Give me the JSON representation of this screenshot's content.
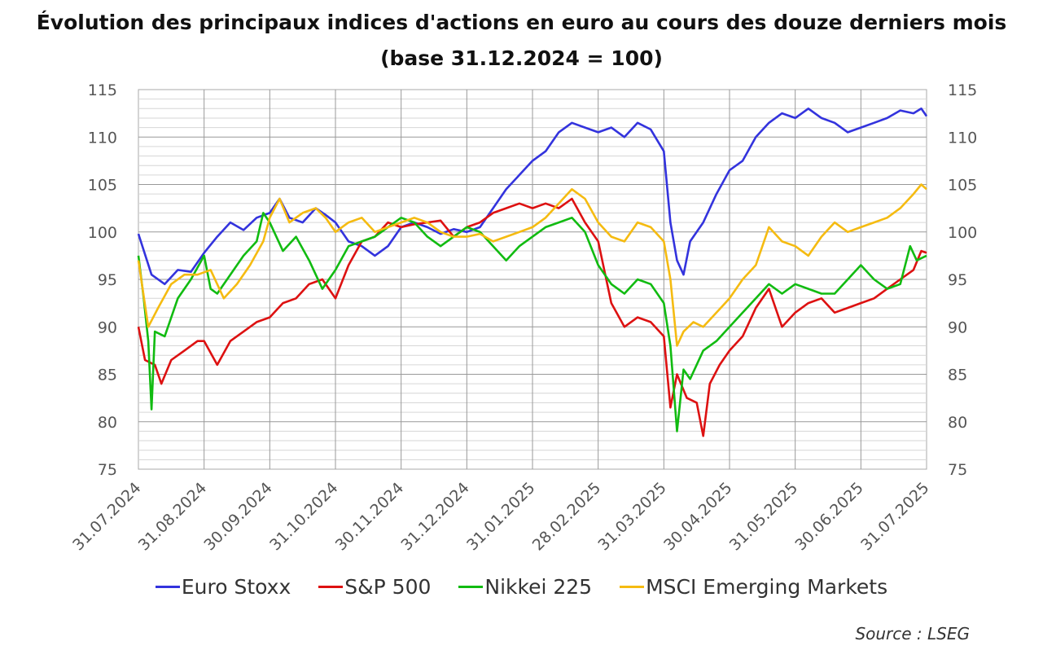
{
  "title_line1": "Évolution des principaux indices d'actions en euro au cours des douze derniers mois",
  "title_line2": "(base 31.12.2024 = 100)",
  "source": "Source : LSEG",
  "chart_data": {
    "type": "line",
    "ylim": [
      75,
      115
    ],
    "yticks": [
      75,
      80,
      85,
      90,
      95,
      100,
      105,
      110,
      115
    ],
    "xticks": [
      "31.07.2024",
      "31.08.2024",
      "30.09.2024",
      "31.10.2024",
      "30.11.2024",
      "31.12.2024",
      "31.01.2025",
      "28.02.2025",
      "31.03.2025",
      "30.04.2025",
      "31.05.2025",
      "30.06.2025",
      "31.07.2025"
    ],
    "series": [
      {
        "name": "Euro Stoxx",
        "color": "#3333DD",
        "points": [
          [
            0,
            99.8
          ],
          [
            0.2,
            95.5
          ],
          [
            0.4,
            94.5
          ],
          [
            0.6,
            96.0
          ],
          [
            0.8,
            95.8
          ],
          [
            1,
            97.8
          ],
          [
            1.2,
            99.5
          ],
          [
            1.4,
            101.0
          ],
          [
            1.6,
            100.2
          ],
          [
            1.8,
            101.5
          ],
          [
            2,
            102.0
          ],
          [
            2.15,
            103.5
          ],
          [
            2.3,
            101.5
          ],
          [
            2.5,
            101.0
          ],
          [
            2.7,
            102.5
          ],
          [
            2.85,
            101.8
          ],
          [
            3,
            101.0
          ],
          [
            3.2,
            99.0
          ],
          [
            3.4,
            98.5
          ],
          [
            3.6,
            97.5
          ],
          [
            3.8,
            98.5
          ],
          [
            4,
            100.5
          ],
          [
            4.2,
            101.0
          ],
          [
            4.4,
            100.5
          ],
          [
            4.6,
            99.8
          ],
          [
            4.8,
            100.3
          ],
          [
            5,
            100.0
          ],
          [
            5.2,
            100.5
          ],
          [
            5.4,
            102.5
          ],
          [
            5.6,
            104.5
          ],
          [
            5.8,
            106.0
          ],
          [
            6,
            107.5
          ],
          [
            6.2,
            108.5
          ],
          [
            6.4,
            110.5
          ],
          [
            6.6,
            111.5
          ],
          [
            6.8,
            111.0
          ],
          [
            7,
            110.5
          ],
          [
            7.2,
            111.0
          ],
          [
            7.4,
            110.0
          ],
          [
            7.6,
            111.5
          ],
          [
            7.8,
            110.8
          ],
          [
            8,
            108.5
          ],
          [
            8.1,
            101.0
          ],
          [
            8.2,
            97.0
          ],
          [
            8.3,
            95.5
          ],
          [
            8.4,
            99.0
          ],
          [
            8.6,
            101.0
          ],
          [
            8.8,
            104.0
          ],
          [
            9,
            106.5
          ],
          [
            9.2,
            107.5
          ],
          [
            9.4,
            110.0
          ],
          [
            9.6,
            111.5
          ],
          [
            9.8,
            112.5
          ],
          [
            10,
            112.0
          ],
          [
            10.2,
            113.0
          ],
          [
            10.4,
            112.0
          ],
          [
            10.6,
            111.5
          ],
          [
            10.8,
            110.5
          ],
          [
            11,
            111.0
          ],
          [
            11.2,
            111.5
          ],
          [
            11.4,
            112.0
          ],
          [
            11.6,
            112.8
          ],
          [
            11.8,
            112.5
          ],
          [
            11.92,
            113.0
          ],
          [
            12,
            112.2
          ]
        ]
      },
      {
        "name": "S&P 500",
        "color": "#DD1111",
        "points": [
          [
            0,
            90.0
          ],
          [
            0.1,
            86.5
          ],
          [
            0.25,
            86.0
          ],
          [
            0.35,
            84.0
          ],
          [
            0.5,
            86.5
          ],
          [
            0.7,
            87.5
          ],
          [
            0.9,
            88.5
          ],
          [
            1,
            88.5
          ],
          [
            1.2,
            86.0
          ],
          [
            1.4,
            88.5
          ],
          [
            1.6,
            89.5
          ],
          [
            1.8,
            90.5
          ],
          [
            2,
            91.0
          ],
          [
            2.2,
            92.5
          ],
          [
            2.4,
            93.0
          ],
          [
            2.6,
            94.5
          ],
          [
            2.8,
            95.0
          ],
          [
            3,
            93.0
          ],
          [
            3.2,
            96.5
          ],
          [
            3.4,
            99.0
          ],
          [
            3.6,
            99.5
          ],
          [
            3.8,
            101.0
          ],
          [
            4,
            100.5
          ],
          [
            4.2,
            100.8
          ],
          [
            4.4,
            101.0
          ],
          [
            4.6,
            101.2
          ],
          [
            4.8,
            99.5
          ],
          [
            5,
            100.5
          ],
          [
            5.2,
            101.0
          ],
          [
            5.4,
            102.0
          ],
          [
            5.6,
            102.5
          ],
          [
            5.8,
            103.0
          ],
          [
            6,
            102.5
          ],
          [
            6.2,
            103.0
          ],
          [
            6.4,
            102.5
          ],
          [
            6.6,
            103.5
          ],
          [
            6.8,
            101.0
          ],
          [
            7,
            99.0
          ],
          [
            7.2,
            92.5
          ],
          [
            7.4,
            90.0
          ],
          [
            7.6,
            91.0
          ],
          [
            7.8,
            90.5
          ],
          [
            8,
            89.0
          ],
          [
            8.1,
            81.5
          ],
          [
            8.2,
            85.0
          ],
          [
            8.35,
            82.5
          ],
          [
            8.5,
            82.0
          ],
          [
            8.6,
            78.5
          ],
          [
            8.7,
            84.0
          ],
          [
            8.85,
            86.0
          ],
          [
            9,
            87.5
          ],
          [
            9.2,
            89.0
          ],
          [
            9.4,
            92.0
          ],
          [
            9.6,
            94.0
          ],
          [
            9.8,
            90.0
          ],
          [
            10,
            91.5
          ],
          [
            10.2,
            92.5
          ],
          [
            10.4,
            93.0
          ],
          [
            10.6,
            91.5
          ],
          [
            10.8,
            92.0
          ],
          [
            11,
            92.5
          ],
          [
            11.2,
            93.0
          ],
          [
            11.4,
            94.0
          ],
          [
            11.6,
            95.0
          ],
          [
            11.8,
            96.0
          ],
          [
            11.92,
            98.0
          ],
          [
            12,
            97.8
          ]
        ]
      },
      {
        "name": "Nikkei 225",
        "color": "#11BB11",
        "points": [
          [
            0,
            97.5
          ],
          [
            0.08,
            93.0
          ],
          [
            0.15,
            88.5
          ],
          [
            0.2,
            81.3
          ],
          [
            0.25,
            89.5
          ],
          [
            0.4,
            89.0
          ],
          [
            0.6,
            93.0
          ],
          [
            0.8,
            95.0
          ],
          [
            1,
            97.5
          ],
          [
            1.1,
            94.0
          ],
          [
            1.2,
            93.5
          ],
          [
            1.4,
            95.5
          ],
          [
            1.6,
            97.5
          ],
          [
            1.8,
            99.0
          ],
          [
            1.9,
            102.0
          ],
          [
            2,
            101.0
          ],
          [
            2.2,
            98.0
          ],
          [
            2.4,
            99.5
          ],
          [
            2.6,
            97.0
          ],
          [
            2.8,
            94.0
          ],
          [
            3,
            96.0
          ],
          [
            3.2,
            98.5
          ],
          [
            3.4,
            99.0
          ],
          [
            3.6,
            99.5
          ],
          [
            3.8,
            100.5
          ],
          [
            4,
            101.5
          ],
          [
            4.2,
            101.0
          ],
          [
            4.4,
            99.5
          ],
          [
            4.6,
            98.5
          ],
          [
            4.8,
            99.5
          ],
          [
            5,
            100.5
          ],
          [
            5.2,
            100.0
          ],
          [
            5.4,
            98.5
          ],
          [
            5.6,
            97.0
          ],
          [
            5.8,
            98.5
          ],
          [
            6,
            99.5
          ],
          [
            6.2,
            100.5
          ],
          [
            6.4,
            101.0
          ],
          [
            6.6,
            101.5
          ],
          [
            6.8,
            100.0
          ],
          [
            7,
            96.5
          ],
          [
            7.2,
            94.5
          ],
          [
            7.4,
            93.5
          ],
          [
            7.6,
            95.0
          ],
          [
            7.8,
            94.5
          ],
          [
            8,
            92.5
          ],
          [
            8.1,
            88.0
          ],
          [
            8.2,
            79.0
          ],
          [
            8.3,
            85.5
          ],
          [
            8.4,
            84.5
          ],
          [
            8.6,
            87.5
          ],
          [
            8.8,
            88.5
          ],
          [
            9,
            90.0
          ],
          [
            9.2,
            91.5
          ],
          [
            9.4,
            93.0
          ],
          [
            9.6,
            94.5
          ],
          [
            9.8,
            93.5
          ],
          [
            10,
            94.5
          ],
          [
            10.2,
            94.0
          ],
          [
            10.4,
            93.5
          ],
          [
            10.6,
            93.5
          ],
          [
            10.8,
            95.0
          ],
          [
            11,
            96.5
          ],
          [
            11.2,
            95.0
          ],
          [
            11.4,
            94.0
          ],
          [
            11.6,
            94.5
          ],
          [
            11.75,
            98.5
          ],
          [
            11.85,
            97.0
          ],
          [
            12,
            97.5
          ]
        ]
      },
      {
        "name": "MSCI Emerging Markets",
        "color": "#F5BB11",
        "points": [
          [
            0,
            97.0
          ],
          [
            0.15,
            90.0
          ],
          [
            0.3,
            92.0
          ],
          [
            0.5,
            94.5
          ],
          [
            0.7,
            95.5
          ],
          [
            0.9,
            95.5
          ],
          [
            1.1,
            96.0
          ],
          [
            1.3,
            93.0
          ],
          [
            1.5,
            94.5
          ],
          [
            1.7,
            96.5
          ],
          [
            1.9,
            99.0
          ],
          [
            2,
            101.5
          ],
          [
            2.15,
            103.5
          ],
          [
            2.3,
            101.0
          ],
          [
            2.5,
            102.0
          ],
          [
            2.7,
            102.5
          ],
          [
            2.85,
            101.5
          ],
          [
            3,
            100.0
          ],
          [
            3.2,
            101.0
          ],
          [
            3.4,
            101.5
          ],
          [
            3.6,
            100.0
          ],
          [
            3.8,
            100.5
          ],
          [
            4,
            101.0
          ],
          [
            4.2,
            101.5
          ],
          [
            4.4,
            101.0
          ],
          [
            4.6,
            100.0
          ],
          [
            4.8,
            99.5
          ],
          [
            5,
            99.5
          ],
          [
            5.2,
            99.8
          ],
          [
            5.4,
            99.0
          ],
          [
            5.6,
            99.5
          ],
          [
            5.8,
            100.0
          ],
          [
            6,
            100.5
          ],
          [
            6.2,
            101.5
          ],
          [
            6.4,
            103.0
          ],
          [
            6.6,
            104.5
          ],
          [
            6.8,
            103.5
          ],
          [
            7,
            101.0
          ],
          [
            7.2,
            99.5
          ],
          [
            7.4,
            99.0
          ],
          [
            7.6,
            101.0
          ],
          [
            7.8,
            100.5
          ],
          [
            8,
            99.0
          ],
          [
            8.1,
            95.0
          ],
          [
            8.2,
            88.0
          ],
          [
            8.3,
            89.5
          ],
          [
            8.45,
            90.5
          ],
          [
            8.6,
            90.0
          ],
          [
            8.8,
            91.5
          ],
          [
            9,
            93.0
          ],
          [
            9.2,
            95.0
          ],
          [
            9.4,
            96.5
          ],
          [
            9.6,
            100.5
          ],
          [
            9.8,
            99.0
          ],
          [
            10,
            98.5
          ],
          [
            10.2,
            97.5
          ],
          [
            10.4,
            99.5
          ],
          [
            10.6,
            101.0
          ],
          [
            10.8,
            100.0
          ],
          [
            11,
            100.5
          ],
          [
            11.2,
            101.0
          ],
          [
            11.4,
            101.5
          ],
          [
            11.6,
            102.5
          ],
          [
            11.8,
            104.0
          ],
          [
            11.92,
            105.0
          ],
          [
            12,
            104.5
          ]
        ]
      }
    ]
  }
}
